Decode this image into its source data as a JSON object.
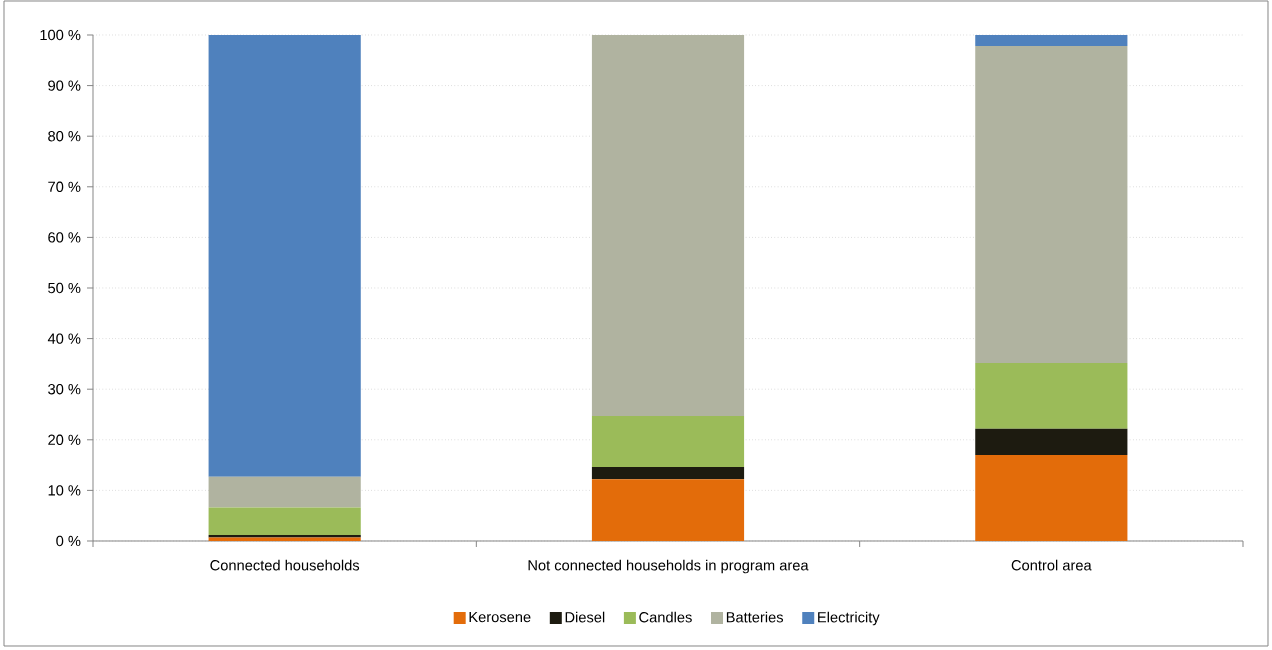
{
  "chart_data": {
    "type": "bar",
    "stacked": true,
    "categories": [
      "Connected households",
      "Not connected households in program area",
      "Control area"
    ],
    "series": [
      {
        "name": "Kerosene",
        "color": "#e36c0a",
        "values": [
          0.7,
          12.2,
          17.0
        ]
      },
      {
        "name": "Diesel",
        "color": "#1d1b10",
        "values": [
          0.5,
          2.4,
          5.2
        ]
      },
      {
        "name": "Candles",
        "color": "#9bbb59",
        "values": [
          5.4,
          10.1,
          13.0
        ]
      },
      {
        "name": "Batteries",
        "color": "#b0b3a0",
        "values": [
          6.1,
          75.3,
          62.6
        ]
      },
      {
        "name": "Electricity",
        "color": "#4f81bd",
        "values": [
          87.3,
          0,
          2.2
        ]
      }
    ],
    "ylim": [
      0,
      100
    ],
    "yticks": [
      {
        "value": 0,
        "label": "0 %"
      },
      {
        "value": 10,
        "label": "10 %"
      },
      {
        "value": 20,
        "label": "20 %"
      },
      {
        "value": 30,
        "label": "30 %"
      },
      {
        "value": 40,
        "label": "40 %"
      },
      {
        "value": 50,
        "label": "50 %"
      },
      {
        "value": 60,
        "label": "60 %"
      },
      {
        "value": 70,
        "label": "70 %"
      },
      {
        "value": 80,
        "label": "80 %"
      },
      {
        "value": 90,
        "label": "90 %"
      },
      {
        "value": 100,
        "label": "100 %"
      }
    ],
    "grid": "y",
    "legend": "bottom"
  }
}
